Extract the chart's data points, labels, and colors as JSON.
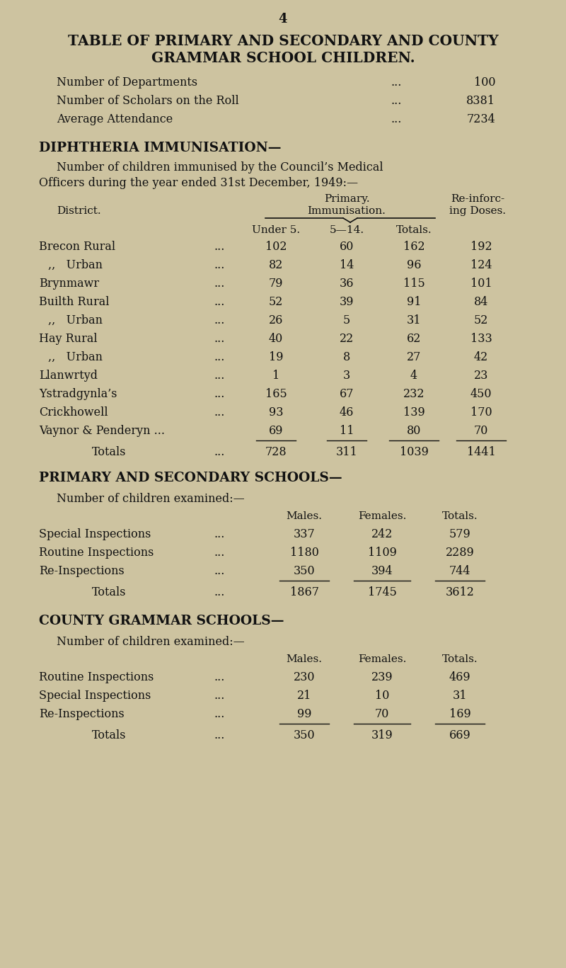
{
  "bg_color": "#cdc3a0",
  "text_color": "#111111",
  "page_number": "4",
  "title_line1": "TABLE OF PRIMARY AND SECONDARY AND COUNTY",
  "title_line2": "GRAMMAR SCHOOL CHILDREN.",
  "summary_rows": [
    [
      "Number of Departments",
      "...",
      "100"
    ],
    [
      "Number of Scholars on the Roll",
      "...",
      "8381"
    ],
    [
      "Average Attendance",
      "...",
      "7234"
    ]
  ],
  "diph_heading": "DIPHTHERIA IMMUNISATION—",
  "diph_subtext1": "Number of children immunised by the Council’s Medical",
  "diph_subtext2": "Officers during the year ended 31st December, 1949:—",
  "diph_rows": [
    [
      "Brecon Rural",
      "...",
      "102",
      "60",
      "162",
      "192"
    ],
    [
      ",,   Urban",
      "...",
      "82",
      "14",
      "96",
      "124"
    ],
    [
      "Brynmawr",
      "...",
      "79",
      "36",
      "115",
      "101"
    ],
    [
      "Builth Rural",
      "...",
      "52",
      "39",
      "91",
      "84"
    ],
    [
      ",,   Urban",
      "...",
      "26",
      "5",
      "31",
      "52"
    ],
    [
      "Hay Rural",
      "...",
      "40",
      "22",
      "62",
      "133"
    ],
    [
      ",,   Urban",
      "...",
      "19",
      "8",
      "27",
      "42"
    ],
    [
      "Llanwrtyd",
      "...",
      "1",
      "3",
      "4",
      "23"
    ],
    [
      "Ystradgynla’s",
      "...",
      "165",
      "67",
      "232",
      "450"
    ],
    [
      "Crickhowell",
      "...",
      "93",
      "46",
      "139",
      "170"
    ],
    [
      "Vaynor & Penderyn ...",
      "",
      "69",
      "11",
      "80",
      "70"
    ]
  ],
  "diph_totals": [
    "Totals",
    "...",
    "728",
    "311",
    "1039",
    "1441"
  ],
  "prim_sec_heading": "PRIMARY AND SECONDARY SCHOOLS—",
  "prim_sec_subtext": "Number of children examined:—",
  "prim_sec_rows": [
    [
      "Special Inspections",
      "...",
      "337",
      "242",
      "579"
    ],
    [
      "Routine Inspections",
      "...",
      "1180",
      "1109",
      "2289"
    ],
    [
      "Re-Inspections",
      "...",
      "350",
      "394",
      "744"
    ]
  ],
  "prim_sec_totals": [
    "Totals",
    "...",
    "1867",
    "1745",
    "3612"
  ],
  "county_heading": "COUNTY GRAMMAR SCHOOLS—",
  "county_subtext": "Number of children examined:—",
  "county_rows": [
    [
      "Routine Inspections",
      "...",
      "230",
      "239",
      "469"
    ],
    [
      "Special Inspections",
      "...",
      "21",
      "10",
      "31"
    ],
    [
      "Re-Inspections",
      "...",
      "99",
      "70",
      "169"
    ]
  ],
  "county_totals": [
    "Totals",
    "...",
    "350",
    "319",
    "669"
  ],
  "col_x": {
    "name": 55,
    "dots": 310,
    "under5": 390,
    "f14": 490,
    "tot": 585,
    "reinf": 680
  },
  "pss_col_x": {
    "name": 55,
    "dots": 310,
    "males": 430,
    "females": 540,
    "totals": 650
  }
}
